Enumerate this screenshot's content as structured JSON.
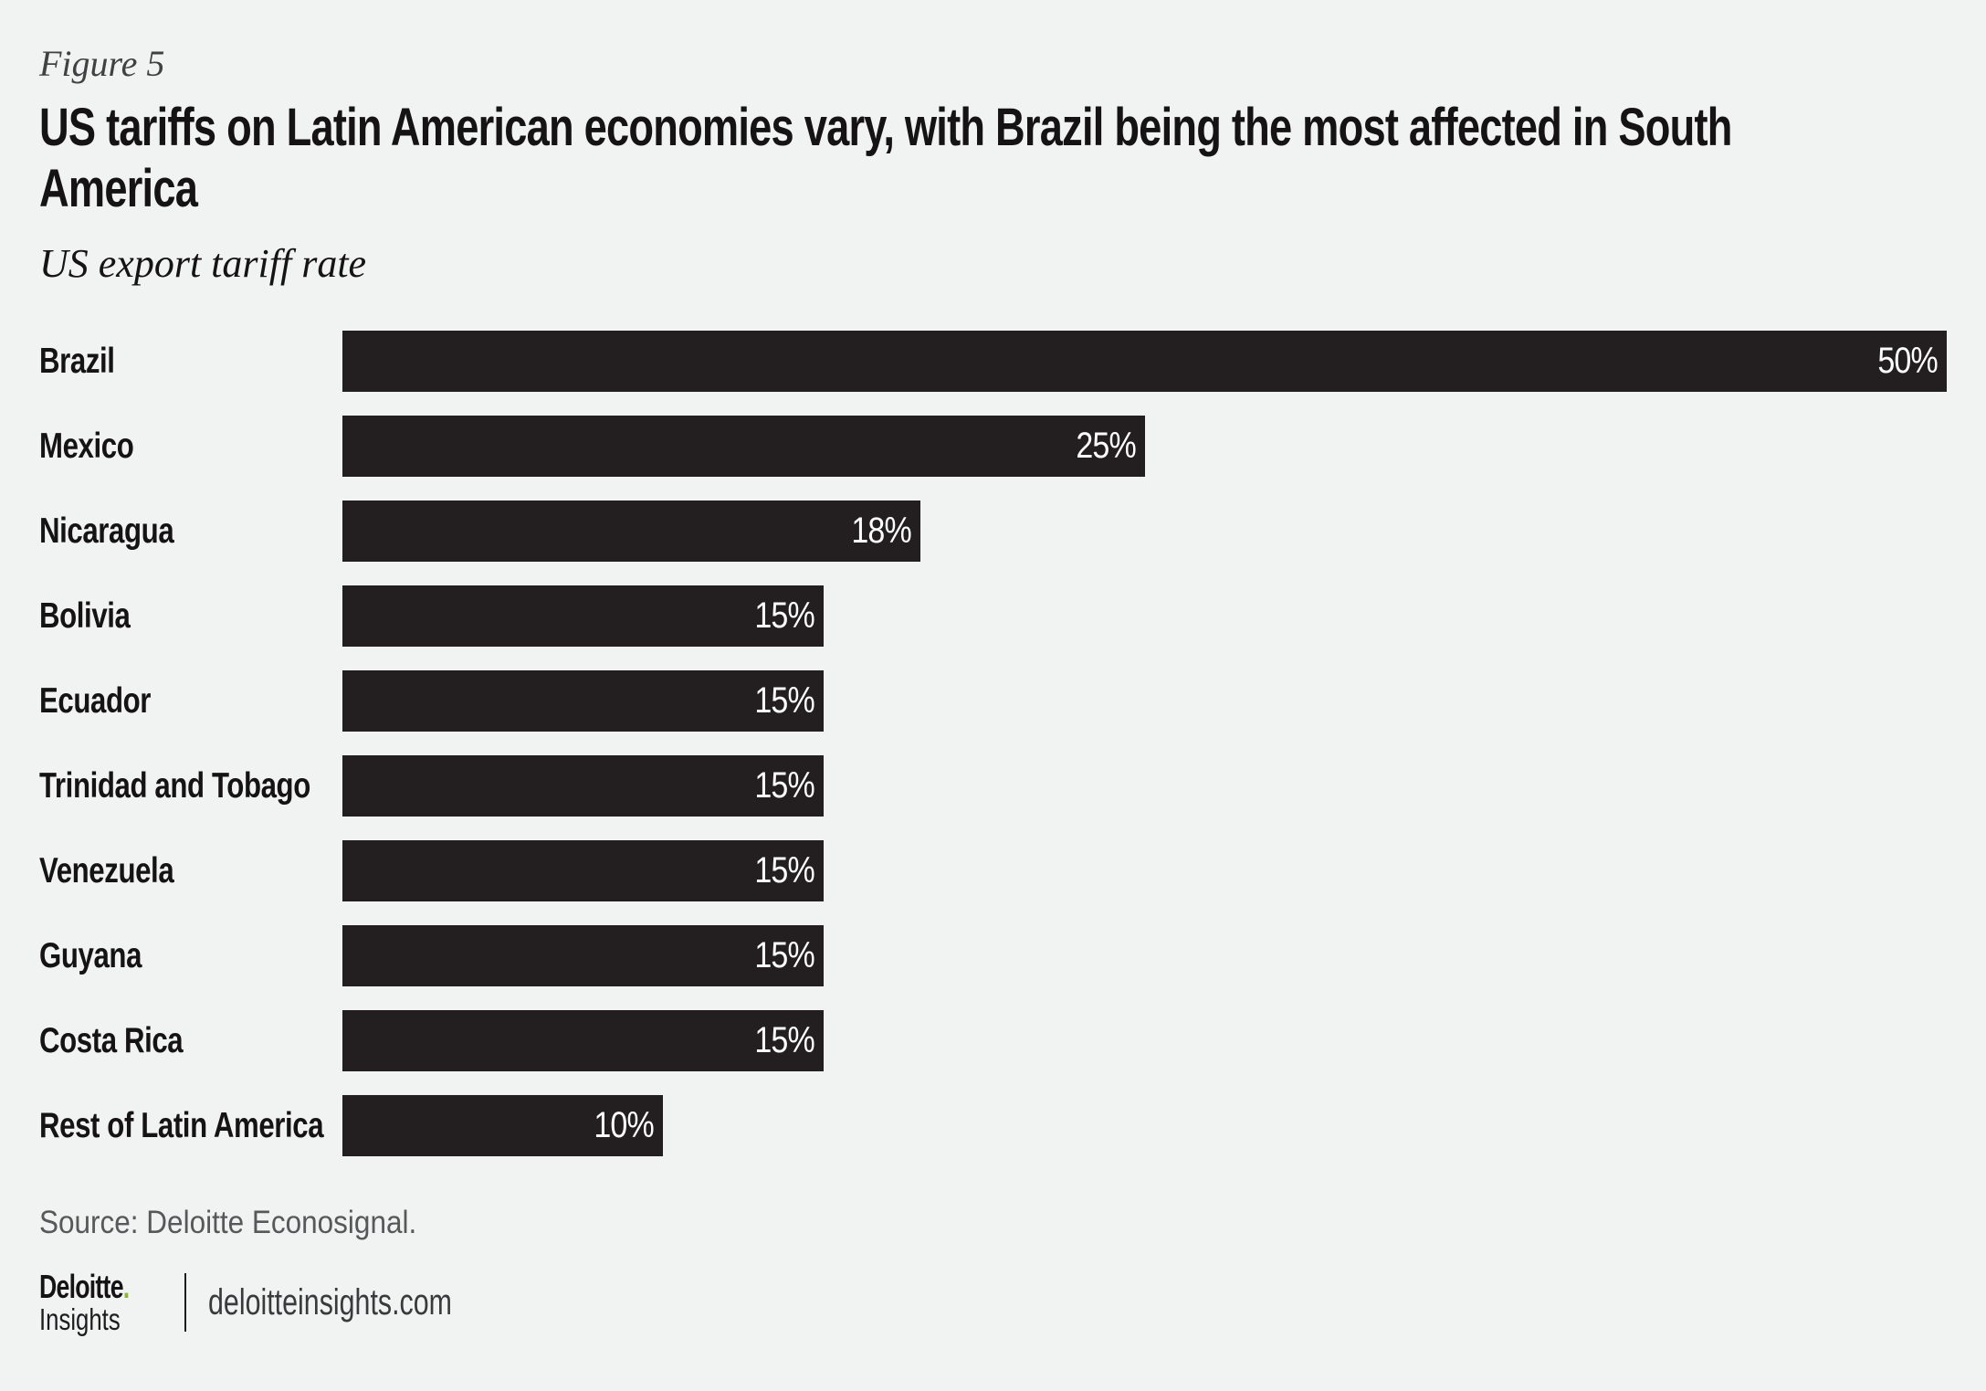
{
  "header": {
    "figure_label": "Figure 5",
    "title": "US tariffs on Latin American economies vary, with Brazil being the most affected in South America",
    "title_lines": [
      "US tariffs on Latin American economies vary, with Brazil being the most affected in South",
      "America"
    ],
    "subtitle": "US export tariff rate"
  },
  "chart_data": {
    "type": "bar",
    "orientation": "horizontal",
    "title": "US tariffs on Latin American economies vary, with Brazil being the most affected in South America",
    "subtitle": "US export tariff rate",
    "categories": [
      "Brazil",
      "Mexico",
      "Nicaragua",
      "Bolivia",
      "Ecuador",
      "Trinidad and Tobago",
      "Venezuela",
      "Guyana",
      "Costa Rica",
      "Rest of Latin America"
    ],
    "values": [
      50,
      25,
      18,
      15,
      15,
      15,
      15,
      15,
      15,
      10
    ],
    "value_labels": [
      "50%",
      "25%",
      "18%",
      "15%",
      "15%",
      "15%",
      "15%",
      "15%",
      "15%",
      "10%"
    ],
    "xlabel": "",
    "ylabel": "",
    "xlim": [
      0,
      50
    ],
    "grid": false,
    "legend": false,
    "value_label_position": "inside-end"
  },
  "footer": {
    "source": "Source: Deloitte Econosignal.",
    "logo": {
      "brand": "Deloitte",
      "brand_dot": ".",
      "sub": "Insights",
      "site": "deloitteinsights.com"
    }
  },
  "colors": {
    "background": "#F1F2F2",
    "bar": "#231F20",
    "title": "#161314",
    "figure_label": "#414042",
    "source_text": "#57585A",
    "value_label": "#FFFFFF",
    "logo_dot": "#86BC25",
    "logo_text": "#1C1C1E",
    "site_text": "#3A3A3C"
  }
}
